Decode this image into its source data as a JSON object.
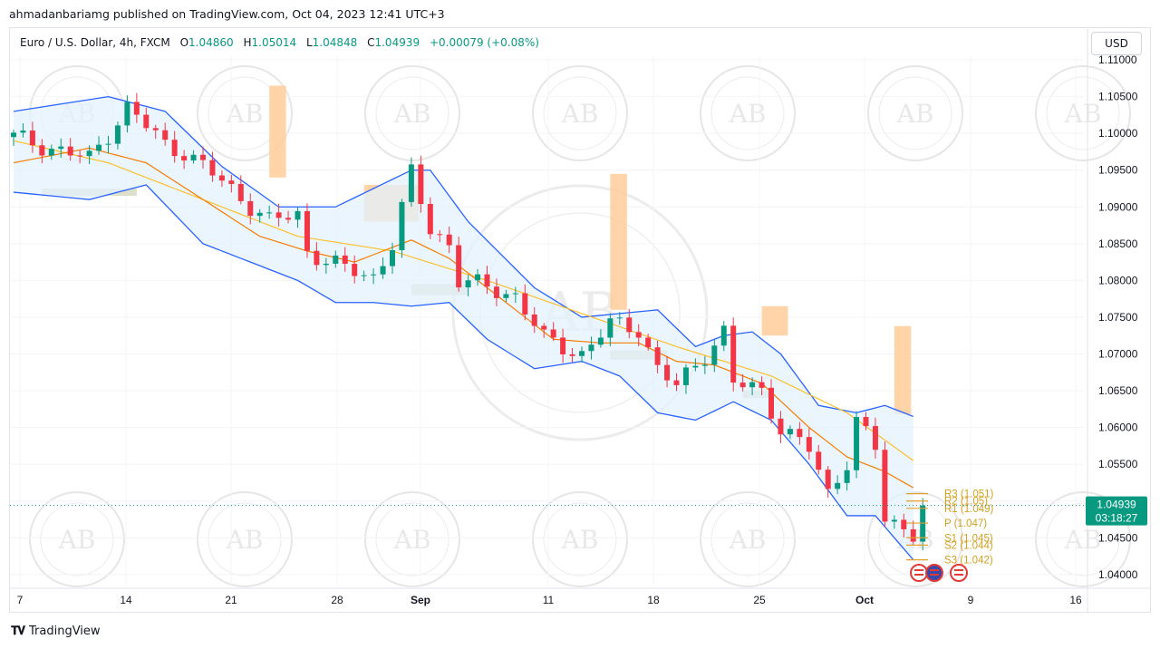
{
  "header": {
    "published": "ahmadanbariamg published on TradingView.com, Oct 04, 2023 12:41 UTC+3"
  },
  "legend": {
    "symbol": "Euro / U.S. Dollar, 4h, FXCM",
    "o_label": "O",
    "o": "1.04860",
    "h_label": "H",
    "h": "1.05014",
    "l_label": "L",
    "l": "1.04848",
    "c_label": "C",
    "c": "1.04939",
    "change": "+0.00079 (+0.08%)"
  },
  "currency_button": "USD",
  "price_tag": {
    "price": "1.04939",
    "countdown": "03:18:27"
  },
  "pivot_labels": [
    "R3 (1.051)",
    "R2 (1.05)",
    "R1 (1.049)",
    "P (1.047)",
    "S1 (1.045)",
    "S2 (1.044)",
    "S3 (1.042)"
  ],
  "watermark_text": "AB",
  "footer": {
    "brand": "TradingView"
  },
  "colors": {
    "up": "#089981",
    "down": "#f23645",
    "band": "#2962ff",
    "band_fill": "#e3f2fd",
    "ma_fast": "#f57c00",
    "ma_slow": "#fbc02d",
    "pivot": "#e0a030",
    "orange_block": "#ffcc99",
    "tag": "#089981"
  },
  "chart_data": {
    "type": "candlestick",
    "title": "Euro / U.S. Dollar, 4h, FXCM",
    "ylim": [
      1.0385,
      1.1105
    ],
    "y_ticks": [
      "1.04000",
      "1.04500",
      "1.05000",
      "1.05500",
      "1.06000",
      "1.06500",
      "1.07000",
      "1.07500",
      "1.08000",
      "1.08500",
      "1.09000",
      "1.09500",
      "1.10000",
      "1.10500",
      "1.11000"
    ],
    "x_ticks": [
      "7",
      "14",
      "21",
      "28",
      "Sep",
      "11",
      "18",
      "25",
      "Oct",
      "9",
      "16"
    ],
    "last_price": 1.04939,
    "close_path": [
      [
        0,
        1.0995
      ],
      [
        8,
        1.0965
      ],
      [
        12,
        1.1035
      ],
      [
        16,
        1.0985
      ],
      [
        18,
        1.0975
      ],
      [
        22,
        1.0935
      ],
      [
        27,
        1.088
      ],
      [
        30,
        1.089
      ],
      [
        31,
        1.084
      ],
      [
        35,
        1.0815
      ],
      [
        38,
        1.0805
      ],
      [
        40,
        1.085
      ],
      [
        42,
        1.0945
      ],
      [
        44,
        1.087
      ],
      [
        46,
        1.085
      ],
      [
        47,
        1.08
      ],
      [
        53,
        1.078
      ],
      [
        56,
        1.072
      ],
      [
        60,
        1.07
      ],
      [
        63,
        1.074
      ],
      [
        66,
        1.0735
      ],
      [
        68,
        1.068
      ],
      [
        70,
        1.0655
      ],
      [
        73,
        1.07
      ],
      [
        75,
        1.073
      ],
      [
        76,
        1.066
      ],
      [
        79,
        1.065
      ],
      [
        81,
        1.06
      ],
      [
        84,
        1.057
      ],
      [
        86,
        1.051
      ],
      [
        88,
        1.0555
      ],
      [
        89,
        1.061
      ],
      [
        91,
        1.057
      ],
      [
        92,
        1.0475
      ],
      [
        95,
        1.0458
      ],
      [
        96,
        1.04939
      ]
    ],
    "candle_count": 97,
    "upper_band": [
      [
        0,
        1.103
      ],
      [
        10,
        1.105
      ],
      [
        16,
        1.103
      ],
      [
        22,
        1.0955
      ],
      [
        28,
        1.09
      ],
      [
        34,
        1.09
      ],
      [
        38,
        1.0925
      ],
      [
        42,
        1.095
      ],
      [
        44,
        1.095
      ],
      [
        48,
        1.088
      ],
      [
        55,
        1.079
      ],
      [
        60,
        1.075
      ],
      [
        64,
        1.0755
      ],
      [
        68,
        1.076
      ],
      [
        72,
        1.071
      ],
      [
        75,
        1.0725
      ],
      [
        78,
        1.073
      ],
      [
        81,
        1.07
      ],
      [
        85,
        1.063
      ],
      [
        89,
        1.062
      ],
      [
        92,
        1.063
      ],
      [
        95,
        1.0615
      ]
    ],
    "lower_band": [
      [
        0,
        1.092
      ],
      [
        8,
        1.091
      ],
      [
        14,
        1.093
      ],
      [
        20,
        1.085
      ],
      [
        26,
        1.082
      ],
      [
        30,
        1.08
      ],
      [
        34,
        1.077
      ],
      [
        38,
        1.077
      ],
      [
        42,
        1.0765
      ],
      [
        46,
        1.077
      ],
      [
        50,
        1.072
      ],
      [
        55,
        1.068
      ],
      [
        60,
        1.069
      ],
      [
        64,
        1.067
      ],
      [
        68,
        1.062
      ],
      [
        72,
        1.061
      ],
      [
        76,
        1.0635
      ],
      [
        80,
        1.061
      ],
      [
        84,
        1.055
      ],
      [
        88,
        1.048
      ],
      [
        91,
        1.048
      ],
      [
        93,
        1.045
      ],
      [
        95,
        1.042
      ]
    ],
    "ma_fast": [
      [
        0,
        1.096
      ],
      [
        8,
        1.098
      ],
      [
        14,
        1.096
      ],
      [
        20,
        1.091
      ],
      [
        26,
        1.086
      ],
      [
        31,
        1.084
      ],
      [
        36,
        1.0825
      ],
      [
        42,
        1.0855
      ],
      [
        46,
        1.083
      ],
      [
        52,
        1.077
      ],
      [
        57,
        1.072
      ],
      [
        62,
        1.0715
      ],
      [
        66,
        1.0715
      ],
      [
        70,
        1.069
      ],
      [
        74,
        1.0685
      ],
      [
        79,
        1.066
      ],
      [
        84,
        1.06
      ],
      [
        88,
        1.056
      ],
      [
        92,
        1.054
      ],
      [
        95,
        1.0518
      ]
    ],
    "ma_slow": [
      [
        0,
        1.099
      ],
      [
        10,
        1.096
      ],
      [
        20,
        1.091
      ],
      [
        30,
        1.086
      ],
      [
        40,
        1.084
      ],
      [
        50,
        1.08
      ],
      [
        60,
        1.0755
      ],
      [
        70,
        1.071
      ],
      [
        80,
        1.067
      ],
      [
        88,
        1.062
      ],
      [
        95,
        1.0555
      ]
    ],
    "pivots": [
      {
        "label": "R3",
        "value": 1.051
      },
      {
        "label": "R2",
        "value": 1.05
      },
      {
        "label": "R1",
        "value": 1.049
      },
      {
        "label": "P",
        "value": 1.047
      },
      {
        "label": "S1",
        "value": 1.045
      },
      {
        "label": "S2",
        "value": 1.044
      },
      {
        "label": "S3",
        "value": 1.042
      }
    ],
    "orange_zones": [
      {
        "i0": 27,
        "i1": 28,
        "top": 1.1065,
        "bottom": 1.094
      },
      {
        "i0": 37,
        "i1": 42,
        "top": 1.093,
        "bottom": 1.088
      },
      {
        "i0": 63,
        "i1": 64,
        "top": 1.0945,
        "bottom": 1.076
      },
      {
        "i0": 79,
        "i1": 81,
        "top": 1.0765,
        "bottom": 1.0725
      },
      {
        "i0": 93,
        "i1": 94,
        "top": 1.0738,
        "bottom": 1.0618
      }
    ],
    "green_zones": [
      {
        "i0": 3,
        "i1": 13,
        "top": 1.0925,
        "bottom": 1.0915
      },
      {
        "i0": 42,
        "i1": 48,
        "top": 1.0795,
        "bottom": 1.078
      },
      {
        "i0": 63,
        "i1": 69,
        "top": 1.0705,
        "bottom": 1.0692
      },
      {
        "i0": 77,
        "i1": 80,
        "top": 1.065,
        "bottom": 1.064
      }
    ]
  }
}
